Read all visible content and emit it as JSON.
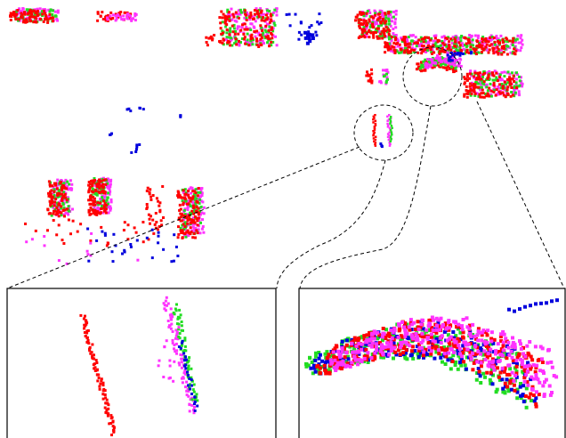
{
  "figure": {
    "background": "#ffffff",
    "point_colors": {
      "red": "#ff0000",
      "magenta": "#ff33ff",
      "green": "#22dd22",
      "blue": "#0000dd"
    },
    "outline_color": "#000000",
    "callouts": [
      {
        "name": "zoom-callout-poles",
        "target": "left-inset"
      },
      {
        "name": "zoom-callout-vehicle",
        "target": "right-inset"
      }
    ]
  }
}
